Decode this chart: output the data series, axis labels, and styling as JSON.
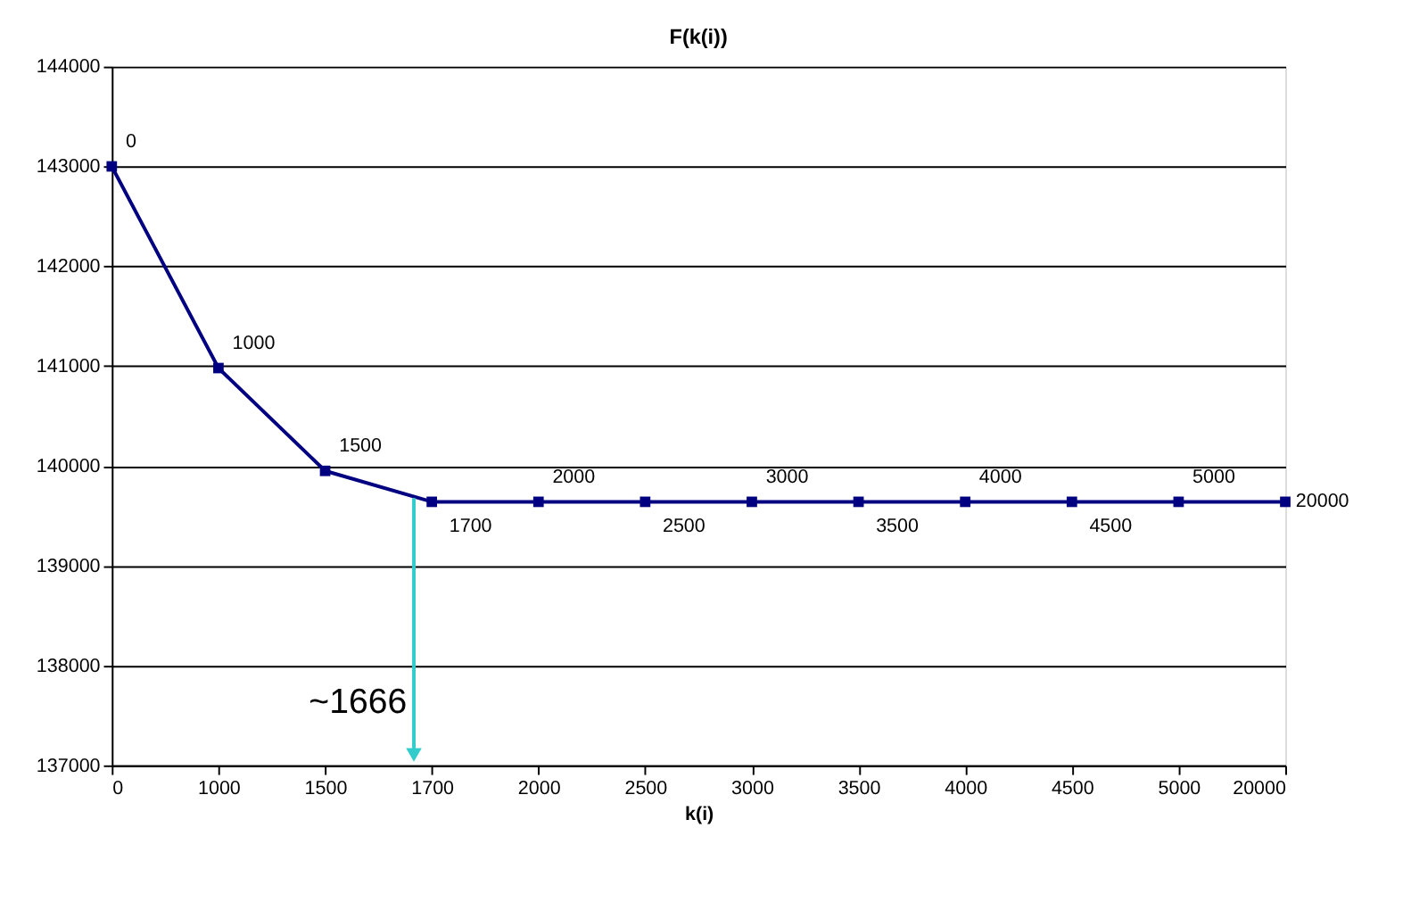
{
  "chart_data": {
    "type": "line",
    "title": "F(k(i))",
    "xlabel": "k(i)",
    "categories": [
      "0",
      "1000",
      "1500",
      "1700",
      "2000",
      "2500",
      "3000",
      "3500",
      "4000",
      "4500",
      "5000",
      "20000"
    ],
    "series": [
      {
        "color": "#000080",
        "values": [
          143000,
          140980,
          139950,
          139640,
          139640,
          139640,
          139640,
          139640,
          139640,
          139640,
          139640,
          139640
        ]
      }
    ],
    "ylim": [
      137000,
      144000
    ],
    "yticks": [
      137000,
      138000,
      139000,
      140000,
      141000,
      142000,
      143000,
      144000
    ],
    "grid": "y",
    "marker": "square",
    "line_style": "solid",
    "annotations": [
      {
        "text": "0",
        "x": "0",
        "y": 143000
      },
      {
        "text": "1000",
        "x": "1000",
        "y": 140980
      },
      {
        "text": "1500",
        "x": "1500",
        "y": 139950
      },
      {
        "text": "1700",
        "x": "1700",
        "y": 139640
      },
      {
        "text": "2000",
        "x": "2000",
        "y": 139640
      },
      {
        "text": "2500",
        "x": "2500",
        "y": 139640
      },
      {
        "text": "3000",
        "x": "3000",
        "y": 139640
      },
      {
        "text": "3500",
        "x": "3500",
        "y": 139640
      },
      {
        "text": "4000",
        "x": "4000",
        "y": 139640
      },
      {
        "text": "4500",
        "x": "4500",
        "y": 139640
      },
      {
        "text": "5000",
        "x": "5000",
        "y": 139640
      },
      {
        "text": "20000",
        "x": "20000",
        "y": 139640
      },
      "~1666"
    ]
  }
}
